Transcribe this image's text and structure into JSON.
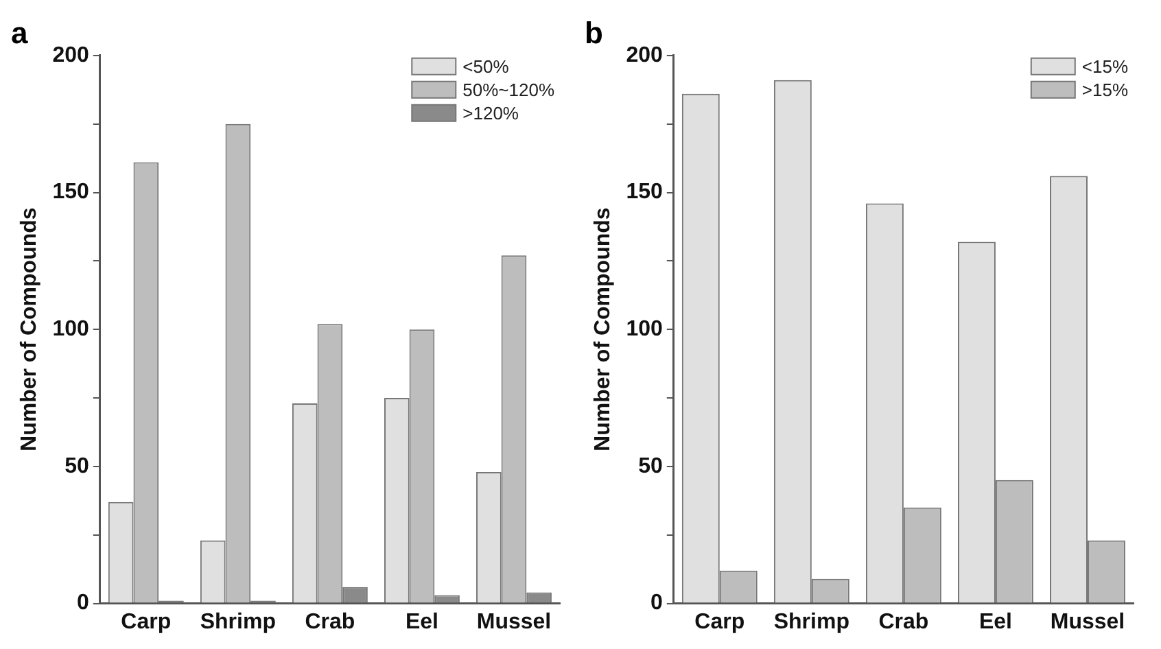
{
  "chart_data": [
    {
      "type": "bar",
      "title": "a",
      "ylabel": "Number of Compounds",
      "categories": [
        "Carp",
        "Shrimp",
        "Crab",
        "Eel",
        "Mussel"
      ],
      "series": [
        {
          "name": "<50%",
          "color": "#e0e0e0",
          "values": [
            37,
            23,
            73,
            75,
            48
          ]
        },
        {
          "name": "50%~120%",
          "color": "#bdbdbd",
          "values": [
            161,
            175,
            102,
            100,
            127
          ]
        },
        {
          "name": ">120%",
          "color": "#8a8a8a",
          "values": [
            1,
            1,
            6,
            3,
            4
          ]
        }
      ],
      "ylim": [
        0,
        200
      ],
      "yticks": [
        0,
        {
          "value": 25,
          "label": null
        },
        50,
        {
          "value": 75,
          "label": null
        },
        100,
        {
          "value": 125,
          "label": null
        },
        150,
        {
          "value": 175,
          "label": null
        },
        200
      ],
      "grid": false,
      "legend": "top right"
    },
    {
      "type": "bar",
      "title": "b",
      "ylabel": "Number of Compounds",
      "categories": [
        "Carp",
        "Shrimp",
        "Crab",
        "Eel",
        "Mussel"
      ],
      "series": [
        {
          "name": "<15%",
          "color": "#e0e0e0",
          "values": [
            186,
            191,
            146,
            132,
            156
          ]
        },
        {
          "name": ">15%",
          "color": "#bdbdbd",
          "values": [
            12,
            9,
            35,
            45,
            23
          ]
        }
      ],
      "ylim": [
        0,
        200
      ],
      "yticks": [
        0,
        {
          "value": 25,
          "label": null
        },
        50,
        {
          "value": 75,
          "label": null
        },
        100,
        {
          "value": 125,
          "label": null
        },
        150,
        {
          "value": 175,
          "label": null
        },
        200
      ],
      "grid": false,
      "legend": "top right"
    }
  ]
}
